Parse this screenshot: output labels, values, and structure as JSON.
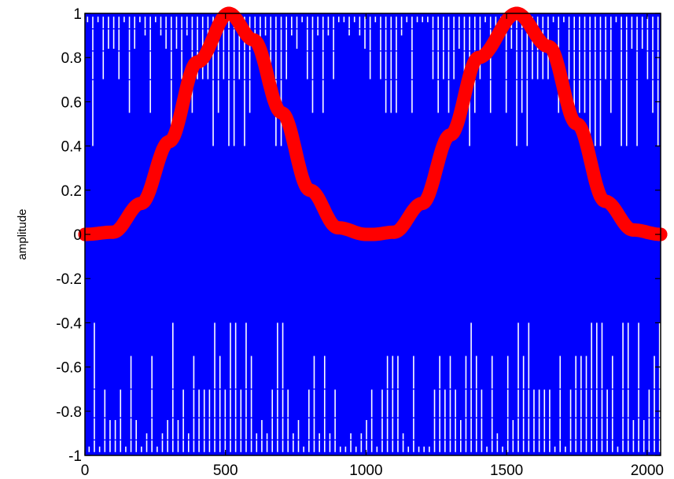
{
  "chart_data": {
    "type": "line",
    "title": "",
    "xlabel": "",
    "ylabel": "amplitude",
    "xlim": [
      0,
      2048
    ],
    "ylim": [
      -1,
      1
    ],
    "xticks": [
      "0",
      "500",
      "1000",
      "1500",
      "2000"
    ],
    "yticks": [
      "1",
      "0.8",
      "0.6",
      "0.4",
      "0.2",
      "0",
      "-0.2",
      "-0.4",
      "-0.6",
      "-0.8",
      "-1"
    ],
    "grid": false,
    "series": [
      {
        "style": "dense blue line with x markers",
        "color": "#0000ff",
        "description_values": "signal samples oscillating densely between -1 and 1 across x 0 to 2048",
        "x": [
          0,
          2048
        ],
        "y_range": [
          -1,
          1
        ]
      },
      {
        "style": "thick red markers",
        "color": "#ff0000",
        "x": [
          0,
          100,
          200,
          300,
          400,
          512,
          600,
          700,
          800,
          900,
          1000,
          1024,
          1100,
          1200,
          1300,
          1400,
          1536,
          1650,
          1750,
          1850,
          1950,
          2048
        ],
        "y": [
          0,
          0.01,
          0.14,
          0.42,
          0.78,
          1,
          0.88,
          0.55,
          0.2,
          0.03,
          0,
          0,
          0.01,
          0.14,
          0.45,
          0.8,
          1,
          0.85,
          0.5,
          0.15,
          0.02,
          0
        ]
      }
    ]
  }
}
